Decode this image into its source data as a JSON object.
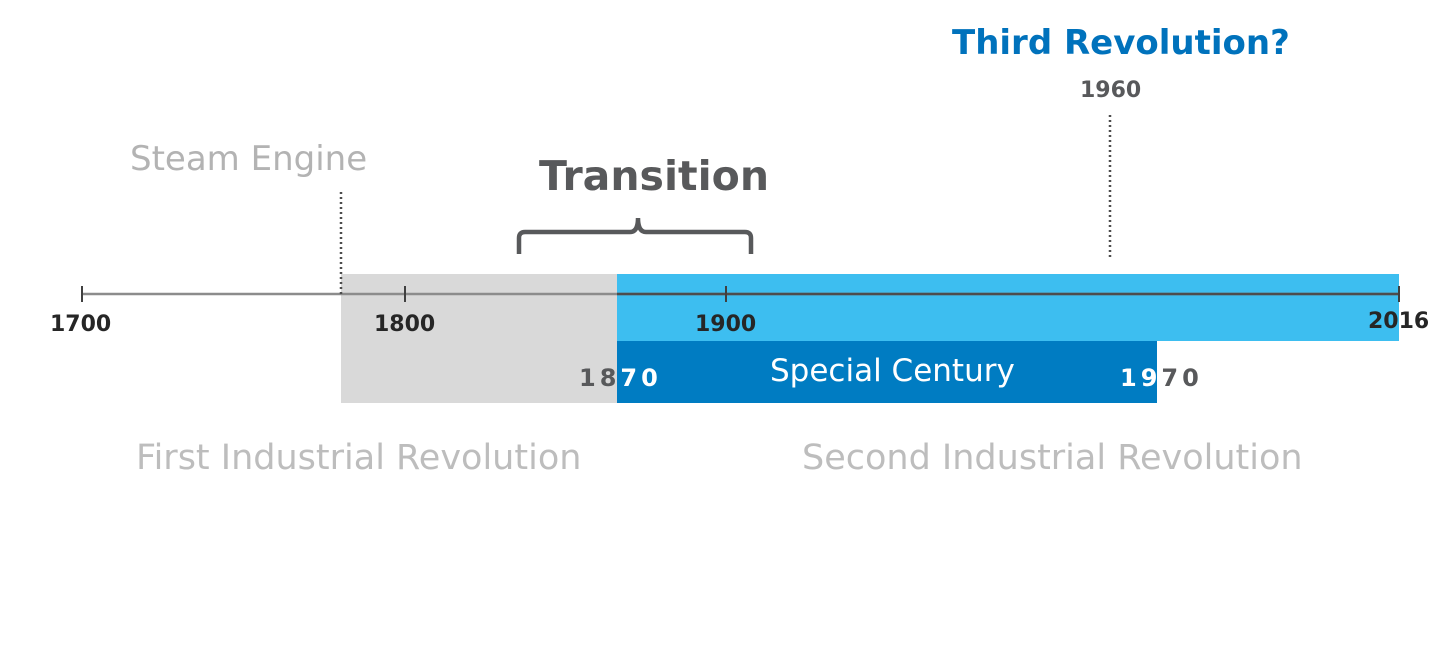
{
  "timeline": {
    "ticks": [
      "1700",
      "1800",
      "1900",
      "2016"
    ]
  },
  "annotations": {
    "steam_engine": "Steam Engine",
    "transition": "Transition",
    "third_revolution": "Third Revolution?",
    "third_revolution_year": "1960"
  },
  "bands": {
    "special_century": {
      "label": "Special Century",
      "start_year_prefix": "18",
      "start_year_suffix": "70",
      "end_year_prefix": "19",
      "end_year_suffix": "70"
    }
  },
  "eras": {
    "first": "First Industrial Revolution",
    "second": "Second Industrial Revolution"
  },
  "colors": {
    "first_revolution_band": "#d9d9d9",
    "second_revolution_band": "#3dbef0",
    "special_century_band": "#007cc2",
    "accent_blue": "#0072bc",
    "axis": "#8c8c8c",
    "dark_grey": "#58595b"
  }
}
